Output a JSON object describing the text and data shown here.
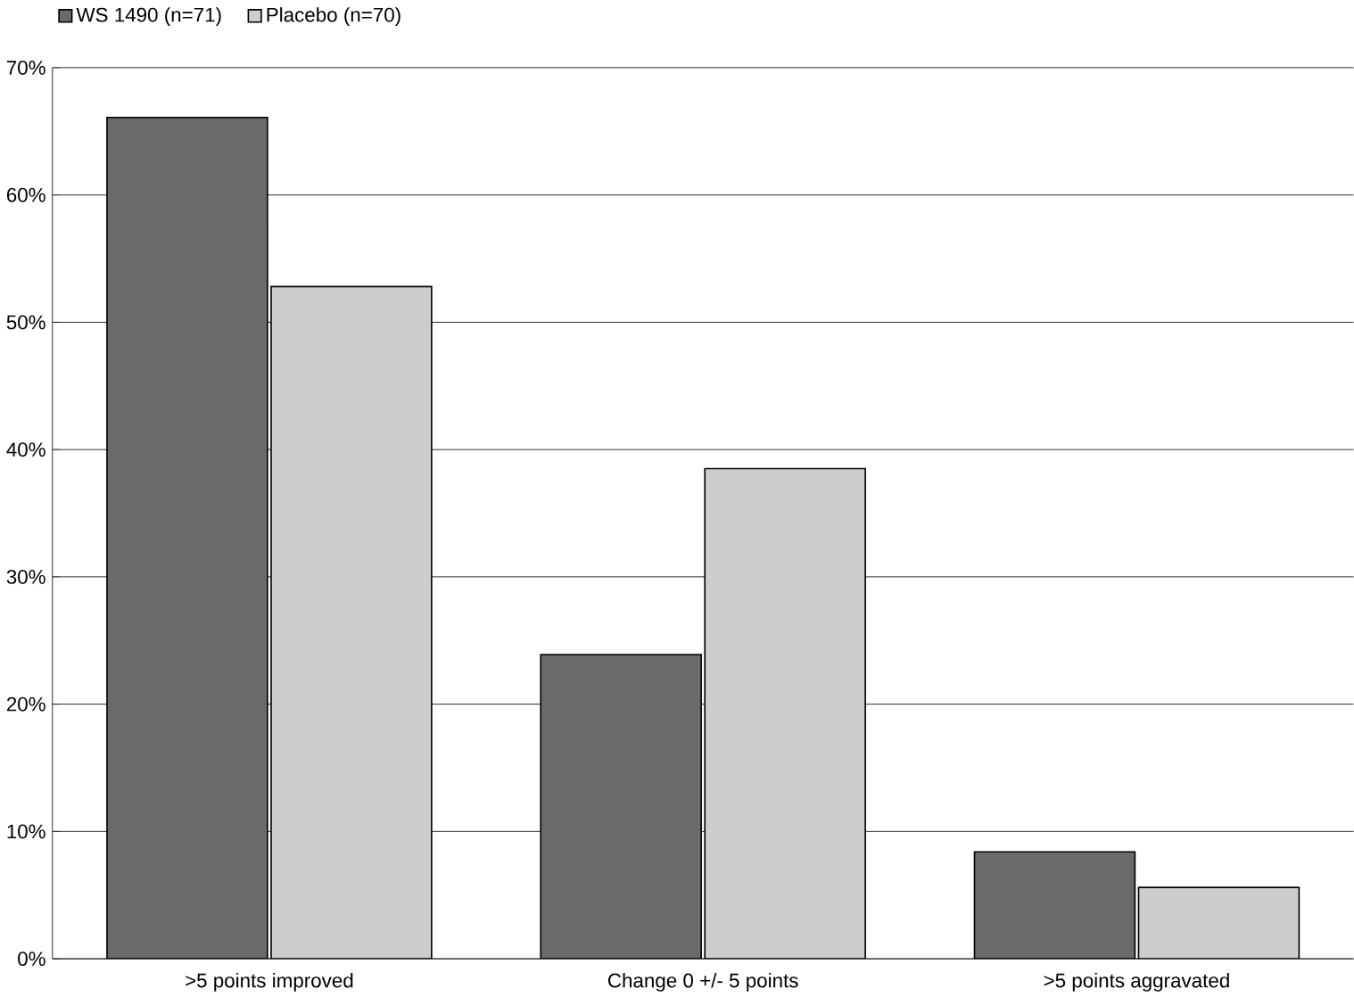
{
  "chart_data": {
    "type": "bar",
    "categories": [
      ">5 points improved",
      "Change 0 +/- 5 points",
      ">5 points aggravated"
    ],
    "series": [
      {
        "name": "WS 1490 (n=71)",
        "color": "#6a6a6a",
        "values": [
          66.1,
          23.9,
          8.4
        ]
      },
      {
        "name": "Placebo (n=70)",
        "color": "#cdcdcd",
        "values": [
          52.8,
          38.5,
          5.6
        ]
      }
    ],
    "ylim": [
      0,
      70
    ],
    "yticks": [
      {
        "value": 0,
        "label": "0%"
      },
      {
        "value": 10,
        "label": "10%"
      },
      {
        "value": 20,
        "label": "20%"
      },
      {
        "value": 30,
        "label": "30%"
      },
      {
        "value": 40,
        "label": "40%"
      },
      {
        "value": 50,
        "label": "50%"
      },
      {
        "value": 60,
        "label": "60%"
      },
      {
        "value": 70,
        "label": "70%"
      }
    ],
    "grid": "y",
    "legend": "top left"
  }
}
